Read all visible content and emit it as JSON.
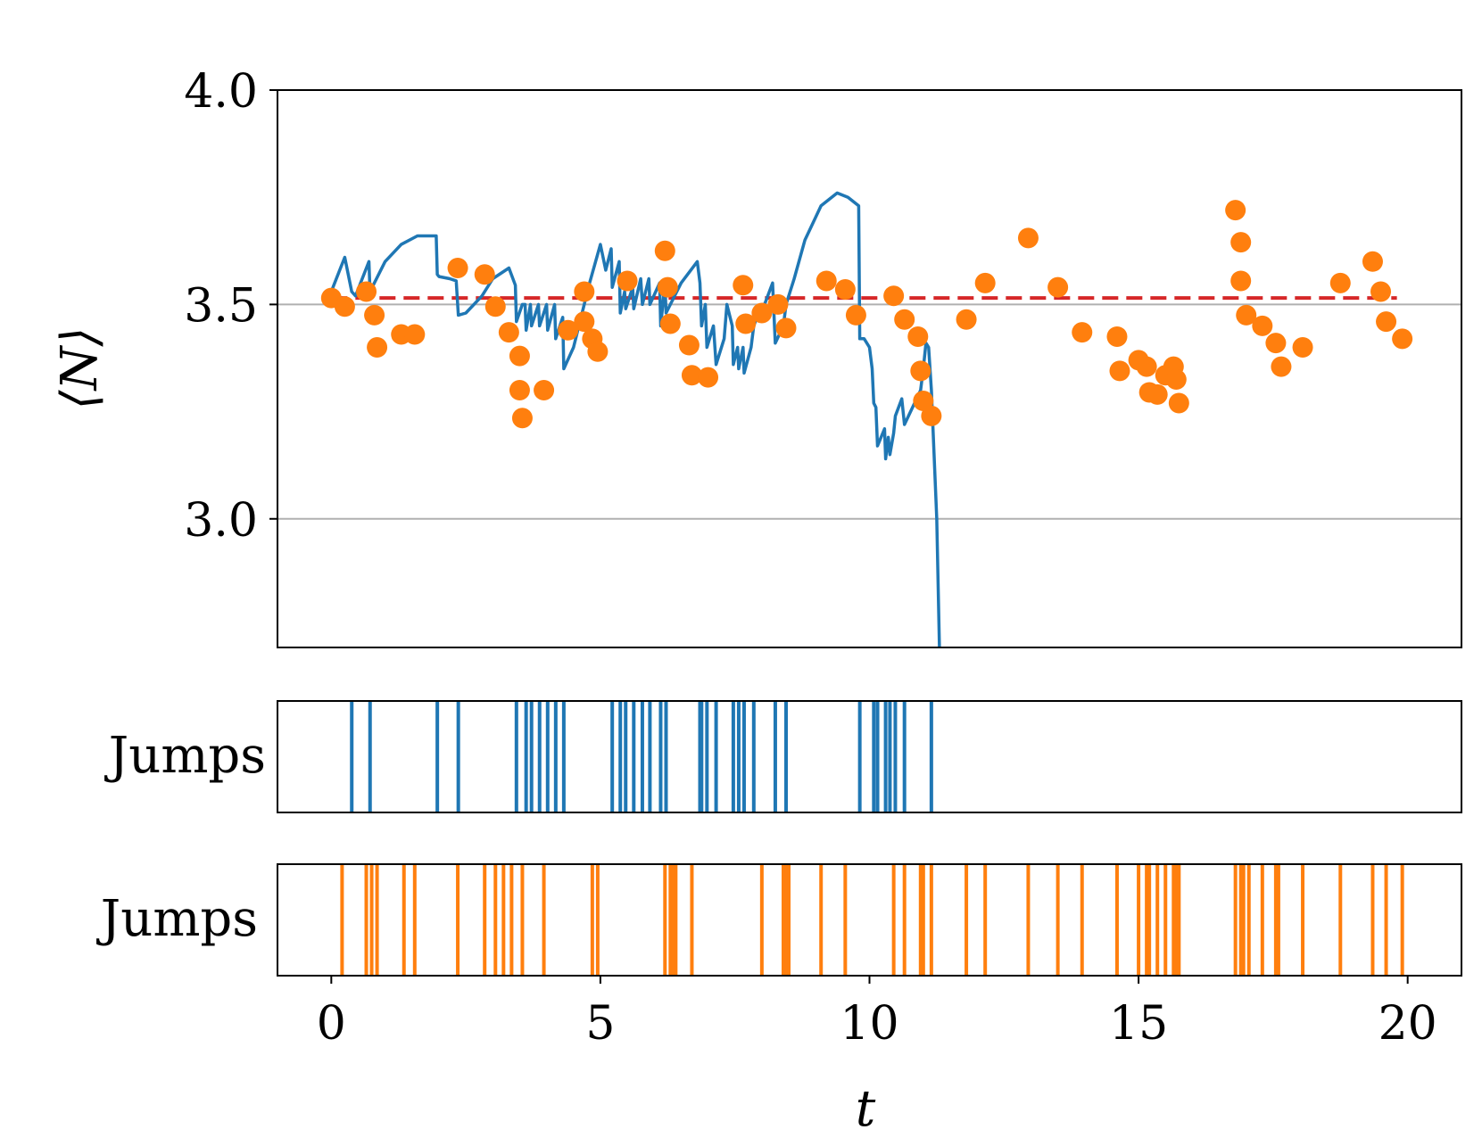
{
  "colors": {
    "blue": "#1f77b4",
    "orange": "#ff7f0e",
    "red": "#d62728",
    "grid": "#b0b0b0"
  },
  "chart_data": {
    "type": "line",
    "top_panel": {
      "ylabel": "⟨N⟩",
      "xlim": [
        -1,
        21
      ],
      "ylim": [
        2.7,
        4.0
      ],
      "yticks": [
        3.0,
        3.5,
        4.0
      ],
      "ytick_labels": [
        "3.0",
        "3.5",
        "4.0"
      ],
      "horizontal_grid": [
        3.0,
        3.5
      ],
      "reference_line": {
        "style": "dashed",
        "y": 3.515,
        "x": [
          0,
          19.8
        ]
      },
      "series": [
        {
          "kind": "line",
          "x": [
            0,
            0.25,
            0.38,
            0.45,
            0.7,
            0.72,
            1.0,
            1.3,
            1.6,
            1.85,
            1.95,
            1.97,
            2.0,
            2.2,
            2.32,
            2.36,
            2.5,
            2.8,
            3.0,
            3.3,
            3.42,
            3.44,
            3.55,
            3.6,
            3.62,
            3.7,
            3.72,
            3.85,
            3.87,
            4.0,
            4.02,
            4.15,
            4.17,
            4.3,
            4.32,
            4.5,
            4.6,
            4.8,
            5.0,
            5.1,
            5.2,
            5.22,
            5.35,
            5.37,
            5.45,
            5.47,
            5.6,
            5.62,
            5.75,
            5.78,
            5.9,
            5.92,
            6.1,
            6.12,
            6.2,
            6.22,
            6.5,
            6.8,
            6.85,
            6.88,
            6.95,
            6.98,
            7.1,
            7.15,
            7.3,
            7.35,
            7.45,
            7.47,
            7.55,
            7.57,
            7.65,
            7.67,
            7.8,
            7.85,
            8.0,
            8.05,
            8.2,
            8.25,
            8.4,
            8.45,
            8.6,
            8.8,
            9.1,
            9.4,
            9.6,
            9.8,
            9.82,
            9.9,
            10.0,
            10.05,
            10.08,
            10.12,
            10.15,
            10.28,
            10.3,
            10.35,
            10.38,
            10.45,
            10.48,
            10.6,
            10.65,
            10.8,
            10.95,
            11.0,
            11.05,
            11.1,
            11.15,
            11.25,
            11.3
          ],
          "y": [
            3.53,
            3.61,
            3.53,
            3.52,
            3.6,
            3.53,
            3.6,
            3.64,
            3.66,
            3.66,
            3.66,
            3.57,
            3.565,
            3.56,
            3.555,
            3.475,
            3.48,
            3.52,
            3.56,
            3.585,
            3.545,
            3.46,
            3.5,
            3.5,
            3.44,
            3.5,
            3.45,
            3.5,
            3.45,
            3.5,
            3.44,
            3.5,
            3.42,
            3.47,
            3.35,
            3.4,
            3.45,
            3.55,
            3.64,
            3.58,
            3.63,
            3.54,
            3.6,
            3.48,
            3.53,
            3.49,
            3.54,
            3.49,
            3.56,
            3.5,
            3.56,
            3.5,
            3.55,
            3.45,
            3.55,
            3.48,
            3.55,
            3.6,
            3.55,
            3.45,
            3.5,
            3.4,
            3.45,
            3.36,
            3.42,
            3.5,
            3.45,
            3.36,
            3.4,
            3.35,
            3.4,
            3.34,
            3.4,
            3.45,
            3.5,
            3.5,
            3.55,
            3.41,
            3.45,
            3.5,
            3.56,
            3.65,
            3.73,
            3.76,
            3.75,
            3.73,
            3.42,
            3.42,
            3.4,
            3.35,
            3.27,
            3.26,
            3.17,
            3.21,
            3.14,
            3.19,
            3.15,
            3.2,
            3.24,
            3.28,
            3.22,
            3.26,
            3.3,
            3.35,
            3.41,
            3.4,
            3.3,
            3.0,
            2.7
          ]
        },
        {
          "kind": "scatter",
          "points": [
            [
              0.0,
              3.515
            ],
            [
              0.25,
              3.495
            ],
            [
              0.65,
              3.53
            ],
            [
              0.8,
              3.475
            ],
            [
              0.85,
              3.4
            ],
            [
              1.3,
              3.43
            ],
            [
              1.55,
              3.43
            ],
            [
              2.35,
              3.585
            ],
            [
              2.85,
              3.57
            ],
            [
              3.05,
              3.495
            ],
            [
              3.3,
              3.435
            ],
            [
              3.5,
              3.38
            ],
            [
              3.5,
              3.3
            ],
            [
              3.55,
              3.235
            ],
            [
              3.95,
              3.3
            ],
            [
              4.4,
              3.44
            ],
            [
              4.7,
              3.53
            ],
            [
              4.7,
              3.46
            ],
            [
              4.85,
              3.42
            ],
            [
              4.95,
              3.39
            ],
            [
              5.5,
              3.555
            ],
            [
              6.2,
              3.625
            ],
            [
              6.25,
              3.54
            ],
            [
              6.3,
              3.455
            ],
            [
              6.65,
              3.405
            ],
            [
              6.7,
              3.335
            ],
            [
              7.0,
              3.33
            ],
            [
              7.65,
              3.545
            ],
            [
              7.7,
              3.455
            ],
            [
              8.0,
              3.48
            ],
            [
              8.3,
              3.5
            ],
            [
              8.45,
              3.445
            ],
            [
              9.2,
              3.555
            ],
            [
              9.55,
              3.535
            ],
            [
              9.75,
              3.475
            ],
            [
              10.45,
              3.52
            ],
            [
              10.65,
              3.465
            ],
            [
              10.9,
              3.425
            ],
            [
              10.95,
              3.345
            ],
            [
              11.0,
              3.275
            ],
            [
              11.15,
              3.24
            ],
            [
              11.8,
              3.465
            ],
            [
              12.15,
              3.55
            ],
            [
              12.95,
              3.655
            ],
            [
              13.5,
              3.54
            ],
            [
              13.95,
              3.435
            ],
            [
              14.6,
              3.425
            ],
            [
              14.65,
              3.345
            ],
            [
              15.0,
              3.37
            ],
            [
              15.15,
              3.355
            ],
            [
              15.2,
              3.295
            ],
            [
              15.35,
              3.29
            ],
            [
              15.5,
              3.335
            ],
            [
              15.65,
              3.355
            ],
            [
              15.7,
              3.325
            ],
            [
              15.75,
              3.27
            ],
            [
              16.8,
              3.72
            ],
            [
              16.9,
              3.645
            ],
            [
              16.9,
              3.555
            ],
            [
              17.0,
              3.475
            ],
            [
              17.3,
              3.45
            ],
            [
              17.55,
              3.41
            ],
            [
              17.65,
              3.355
            ],
            [
              18.05,
              3.4
            ],
            [
              18.75,
              3.55
            ],
            [
              19.35,
              3.6
            ],
            [
              19.5,
              3.53
            ],
            [
              19.6,
              3.46
            ],
            [
              19.9,
              3.42
            ]
          ]
        }
      ]
    },
    "jump_panels": [
      {
        "ylabel": "Jumps",
        "series": "blue",
        "jump_times": [
          0.38,
          0.72,
          1.97,
          2.36,
          3.44,
          3.62,
          3.72,
          3.87,
          4.02,
          4.17,
          4.32,
          5.22,
          5.37,
          5.47,
          5.62,
          5.78,
          5.92,
          6.12,
          6.22,
          6.85,
          6.88,
          6.98,
          7.15,
          7.47,
          7.57,
          7.67,
          7.85,
          8.25,
          8.45,
          9.82,
          10.08,
          10.15,
          10.3,
          10.38,
          10.48,
          10.65,
          11.15
        ]
      },
      {
        "ylabel": "Jumps",
        "series": "orange",
        "jump_times": [
          0.2,
          0.65,
          0.75,
          0.85,
          1.35,
          1.55,
          2.35,
          2.85,
          3.05,
          3.2,
          3.35,
          3.55,
          3.95,
          4.85,
          4.95,
          6.2,
          6.3,
          6.35,
          6.4,
          6.7,
          8.0,
          8.4,
          8.45,
          8.5,
          9.1,
          9.55,
          10.45,
          10.65,
          10.95,
          11.0,
          11.15,
          11.8,
          12.15,
          12.95,
          13.5,
          13.95,
          14.6,
          15.0,
          15.15,
          15.2,
          15.35,
          15.5,
          15.65,
          15.7,
          15.75,
          16.8,
          16.9,
          16.95,
          17.05,
          17.3,
          17.55,
          17.6,
          18.05,
          18.75,
          19.35,
          19.6,
          19.9
        ]
      }
    ],
    "x_axis": {
      "label": "t",
      "ticks": [
        0,
        5,
        10,
        15,
        20
      ],
      "tick_labels": [
        "0",
        "5",
        "10",
        "15",
        "20"
      ]
    }
  }
}
